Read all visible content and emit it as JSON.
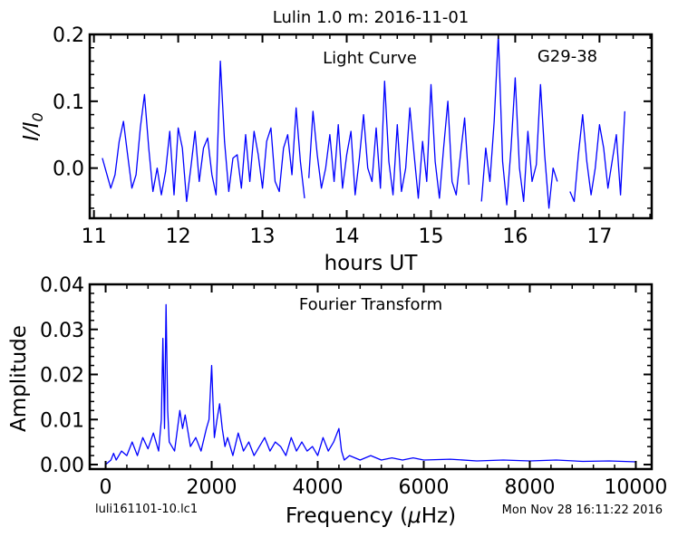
{
  "figure": {
    "title": "Lulin 1.0 m:  2016-11-01",
    "footer_left": "luli161101-10.lc1",
    "footer_right": "Mon Nov 28 16:11:22 2016"
  },
  "chart_data": [
    {
      "type": "line",
      "title": "Light Curve",
      "object_label": "G29-38",
      "xlabel": "hours UT",
      "ylabel": "I/I",
      "ylabel_sub": "0",
      "xlim": [
        10.95,
        17.62
      ],
      "ylim": [
        -0.075,
        0.2
      ],
      "xticks": [
        11,
        12,
        13,
        14,
        15,
        16,
        17
      ],
      "yticks": [
        0.0,
        0.1,
        0.2
      ],
      "ytick_labels": [
        "0.0",
        "0.1",
        "0.2"
      ],
      "line_color": "#0000ff",
      "segments": [
        {
          "x": [
            11.1,
            11.2,
            11.25,
            11.3,
            11.35,
            11.4,
            11.45,
            11.5,
            11.55,
            11.6,
            11.65,
            11.7,
            11.75,
            11.8,
            11.85,
            11.9,
            11.95,
            12.0,
            12.05,
            12.1,
            12.15,
            12.2,
            12.25,
            12.3,
            12.35,
            12.4,
            12.45,
            12.5,
            12.55,
            12.6,
            12.65,
            12.7,
            12.75,
            12.8,
            12.85,
            12.9,
            12.95,
            13.0,
            13.05,
            13.1,
            13.15,
            13.2,
            13.25,
            13.3,
            13.35,
            13.4,
            13.45,
            13.5
          ],
          "y": [
            0.015,
            -0.03,
            -0.01,
            0.04,
            0.07,
            0.02,
            -0.03,
            -0.01,
            0.06,
            0.11,
            0.03,
            -0.035,
            0.0,
            -0.04,
            -0.005,
            0.055,
            -0.04,
            0.06,
            0.03,
            -0.05,
            0.0,
            0.055,
            -0.02,
            0.03,
            0.045,
            -0.01,
            -0.04,
            0.16,
            0.04,
            -0.035,
            0.015,
            0.02,
            -0.03,
            0.05,
            -0.02,
            0.055,
            0.02,
            -0.03,
            0.04,
            0.06,
            -0.02,
            -0.035,
            0.03,
            0.05,
            -0.01,
            0.09,
            0.01,
            -0.045
          ]
        },
        {
          "x": [
            13.55,
            13.6,
            13.65,
            13.7,
            13.75,
            13.8,
            13.85,
            13.9,
            13.95,
            14.0,
            14.05,
            14.1,
            14.15,
            14.2,
            14.25,
            14.3,
            14.35,
            14.4,
            14.45,
            14.5,
            14.55,
            14.6,
            14.65,
            14.7,
            14.75,
            14.8,
            14.85,
            14.9,
            14.95,
            15.0,
            15.05,
            15.1,
            15.15,
            15.2,
            15.25,
            15.3,
            15.35,
            15.4,
            15.45
          ],
          "y": [
            -0.015,
            0.085,
            0.02,
            -0.03,
            0.0,
            0.05,
            -0.02,
            0.065,
            -0.03,
            0.02,
            0.055,
            -0.04,
            0.015,
            0.08,
            0.0,
            -0.02,
            0.06,
            -0.03,
            0.13,
            0.01,
            -0.04,
            0.065,
            -0.035,
            0.0,
            0.09,
            0.02,
            -0.045,
            0.04,
            -0.02,
            0.125,
            0.01,
            -0.045,
            0.03,
            0.1,
            -0.02,
            -0.04,
            0.02,
            0.075,
            -0.025
          ]
        },
        {
          "x": [
            15.6,
            15.65,
            15.7,
            15.75,
            15.8,
            15.85,
            15.9,
            15.95,
            16.0,
            16.05,
            16.1,
            16.15,
            16.2,
            16.25,
            16.3,
            16.35,
            16.4,
            16.45,
            16.5
          ],
          "y": [
            -0.05,
            0.03,
            -0.02,
            0.07,
            0.2,
            0.01,
            -0.055,
            0.03,
            0.135,
            0.0,
            -0.05,
            0.055,
            -0.02,
            0.005,
            0.125,
            0.02,
            -0.06,
            0.0,
            -0.02
          ]
        },
        {
          "x": [
            16.65,
            16.7,
            16.75,
            16.8,
            16.85,
            16.9,
            16.95,
            17.0,
            17.05,
            17.1,
            17.15,
            17.2,
            17.25,
            17.3
          ],
          "y": [
            -0.035,
            -0.05,
            0.02,
            0.08,
            0.01,
            -0.04,
            0.0,
            0.065,
            0.03,
            -0.03,
            0.01,
            0.05,
            -0.04,
            0.085
          ]
        }
      ]
    },
    {
      "type": "line",
      "title": "Fourier Transform",
      "xlabel": "Frequency (",
      "xlabel_mu": "μ",
      "xlabel_unit": "Hz)",
      "ylabel": "Amplitude",
      "xlim": [
        -300,
        10300
      ],
      "ylim": [
        -0.001,
        0.04
      ],
      "xticks": [
        0,
        2000,
        4000,
        6000,
        8000,
        10000
      ],
      "yticks": [
        0.0,
        0.01,
        0.02,
        0.03,
        0.04
      ],
      "ytick_labels": [
        "0.00",
        "0.01",
        "0.02",
        "0.03",
        "0.04"
      ],
      "line_color": "#0000ff",
      "x": [
        0,
        100,
        150,
        200,
        300,
        400,
        500,
        600,
        700,
        800,
        900,
        1000,
        1050,
        1080,
        1110,
        1140,
        1170,
        1200,
        1300,
        1400,
        1450,
        1500,
        1600,
        1700,
        1800,
        1900,
        1950,
        2000,
        2050,
        2100,
        2150,
        2200,
        2250,
        2300,
        2400,
        2500,
        2600,
        2700,
        2800,
        2900,
        3000,
        3100,
        3200,
        3300,
        3400,
        3500,
        3600,
        3700,
        3800,
        3900,
        4000,
        4100,
        4200,
        4300,
        4400,
        4450,
        4500,
        4600,
        4800,
        5000,
        5200,
        5400,
        5600,
        5800,
        6000,
        6500,
        7000,
        7500,
        8000,
        8500,
        9000,
        9500,
        10000
      ],
      "y": [
        0.0,
        0.001,
        0.0025,
        0.001,
        0.003,
        0.002,
        0.005,
        0.002,
        0.006,
        0.0035,
        0.007,
        0.003,
        0.01,
        0.028,
        0.008,
        0.0355,
        0.012,
        0.005,
        0.003,
        0.012,
        0.008,
        0.011,
        0.004,
        0.006,
        0.003,
        0.008,
        0.01,
        0.022,
        0.006,
        0.01,
        0.0135,
        0.008,
        0.004,
        0.006,
        0.002,
        0.007,
        0.003,
        0.005,
        0.002,
        0.004,
        0.006,
        0.003,
        0.005,
        0.004,
        0.002,
        0.006,
        0.003,
        0.005,
        0.003,
        0.004,
        0.002,
        0.006,
        0.003,
        0.005,
        0.008,
        0.003,
        0.001,
        0.002,
        0.001,
        0.002,
        0.001,
        0.0015,
        0.001,
        0.0015,
        0.001,
        0.0012,
        0.0008,
        0.001,
        0.0008,
        0.001,
        0.0007,
        0.0008,
        0.0006
      ]
    }
  ]
}
